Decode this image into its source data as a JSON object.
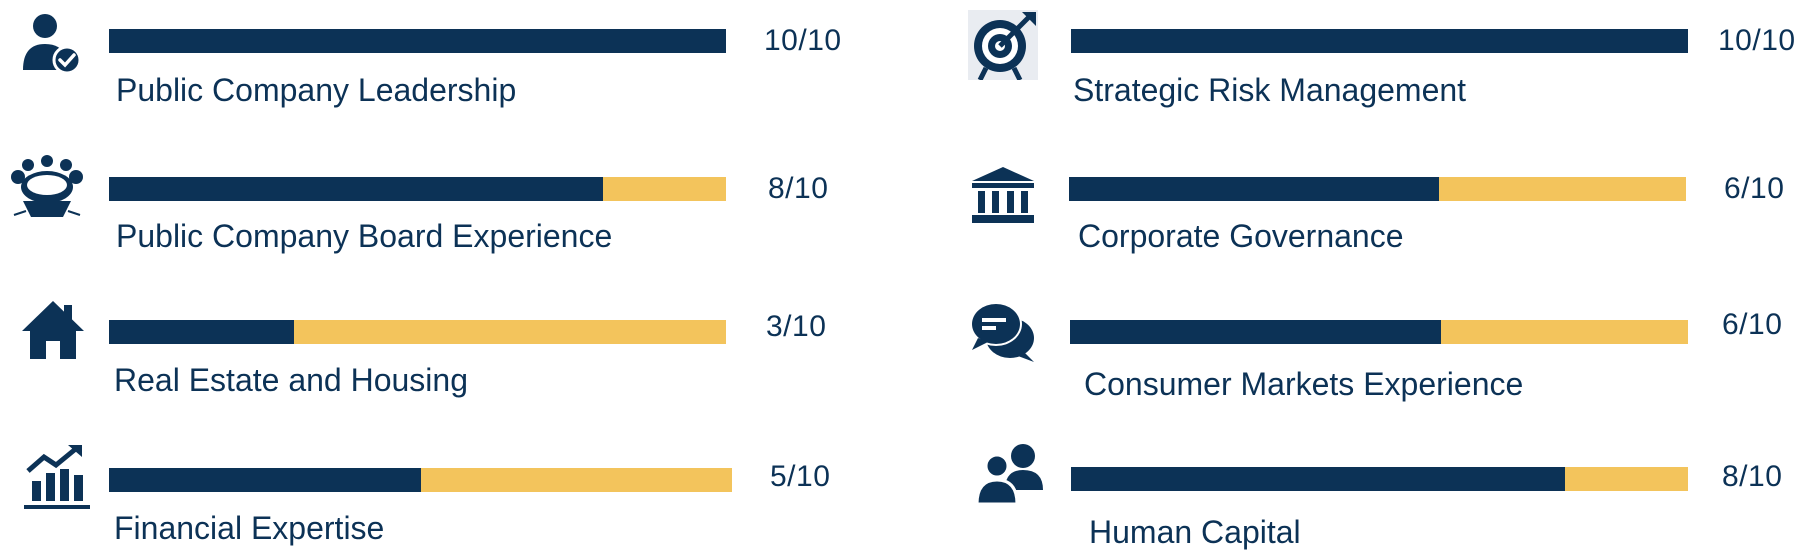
{
  "chart_data": {
    "type": "bar",
    "orientation": "horizontal",
    "max": 10,
    "colors": {
      "filled": "#0c3256",
      "remaining": "#f3c45c",
      "text": "#0c3256"
    },
    "items": [
      {
        "label": "Public Company Leadership",
        "value": 10,
        "score_text": "10/10",
        "icon": "executive-person-check-icon"
      },
      {
        "label": "Public Company Board Experience",
        "value": 8,
        "score_text": "8/10",
        "icon": "boardroom-table-icon"
      },
      {
        "label": "Real Estate and Housing",
        "value": 3,
        "score_text": "3/10",
        "icon": "house-icon"
      },
      {
        "label": "Financial Expertise",
        "value": 5,
        "score_text": "5/10",
        "icon": "growth-chart-icon"
      },
      {
        "label": "Strategic Risk Management",
        "value": 10,
        "score_text": "10/10",
        "icon": "target-arrow-icon"
      },
      {
        "label": "Corporate Governance",
        "value": 6,
        "score_text": "6/10",
        "icon": "government-building-icon"
      },
      {
        "label": "Consumer Markets Experience",
        "value": 6,
        "score_text": "6/10",
        "icon": "chat-bubbles-icon"
      },
      {
        "label": "Human Capital",
        "value": 8,
        "score_text": "8/10",
        "icon": "people-icon"
      }
    ]
  }
}
